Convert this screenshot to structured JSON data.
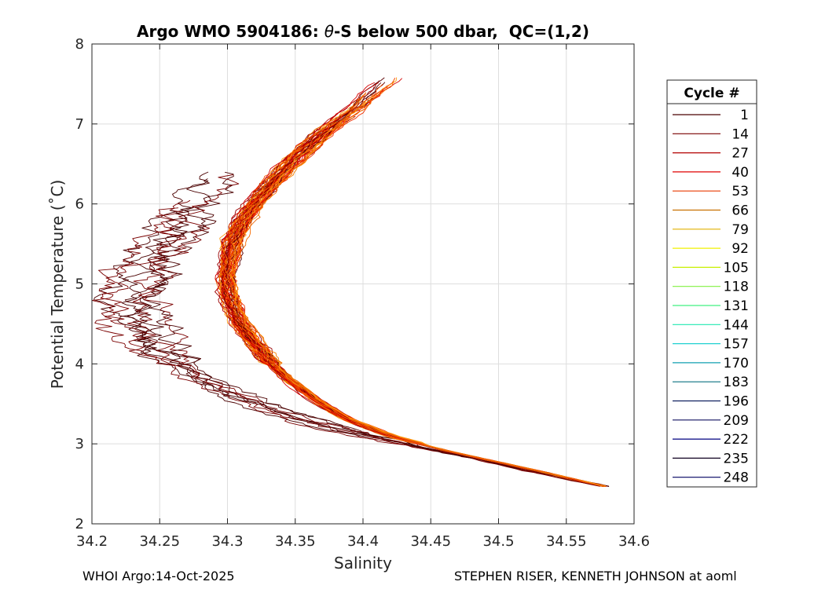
{
  "chart_data": {
    "type": "line",
    "title_prefix": "Argo WMO 5904186: ",
    "title_theta": "θ",
    "title_suffix": "-S below 500 dbar,  QC=(1,2)",
    "xlabel": "Salinity",
    "ylabel": "Potential Temperature (˚C)",
    "xlim": [
      34.2,
      34.6
    ],
    "ylim": [
      2,
      8
    ],
    "xticks": [
      34.2,
      34.25,
      34.3,
      34.35,
      34.4,
      34.45,
      34.5,
      34.55,
      34.6
    ],
    "xtick_labels": [
      "34.2",
      "34.25",
      "34.3",
      "34.35",
      "34.4",
      "34.45",
      "34.5",
      "34.55",
      "34.6"
    ],
    "yticks": [
      2,
      3,
      4,
      5,
      6,
      7,
      8
    ],
    "ytick_labels": [
      "2",
      "3",
      "4",
      "5",
      "6",
      "7",
      "8"
    ],
    "grid": true,
    "legend_position": "right",
    "legend_title": "Cycle #",
    "legend_entries": [
      {
        "label": "1",
        "color": "#4a0000"
      },
      {
        "label": "14",
        "color": "#7a0000"
      },
      {
        "label": "27",
        "color": "#b30000"
      },
      {
        "label": "40",
        "color": "#e00000"
      },
      {
        "label": "53",
        "color": "#e83a00"
      },
      {
        "label": "66",
        "color": "#c87000"
      },
      {
        "label": "79",
        "color": "#e0b000"
      },
      {
        "label": "92",
        "color": "#f0f000"
      },
      {
        "label": "105",
        "color": "#c8f000"
      },
      {
        "label": "118",
        "color": "#80f040"
      },
      {
        "label": "131",
        "color": "#40f080"
      },
      {
        "label": "144",
        "color": "#20e8b0"
      },
      {
        "label": "157",
        "color": "#20d0d0"
      },
      {
        "label": "170",
        "color": "#10a0b0"
      },
      {
        "label": "183",
        "color": "#0a7080"
      },
      {
        "label": "196",
        "color": "#102060"
      },
      {
        "label": "209",
        "color": "#101060"
      },
      {
        "label": "222",
        "color": "#000080"
      },
      {
        "label": "235",
        "color": "#100020"
      },
      {
        "label": "248",
        "color": "#000060"
      }
    ],
    "profile_template": {
      "salinity": [
        34.578,
        34.54,
        34.5,
        34.46,
        34.42,
        34.39,
        34.365,
        34.345,
        34.33,
        34.318,
        34.308,
        34.302,
        34.3,
        34.301,
        34.305,
        34.312,
        34.322,
        34.335,
        34.352,
        34.372,
        34.395,
        34.42
      ],
      "theta": [
        2.47,
        2.62,
        2.77,
        2.92,
        3.1,
        3.3,
        3.55,
        3.8,
        4.05,
        4.3,
        4.55,
        4.8,
        5.05,
        5.3,
        5.55,
        5.8,
        6.05,
        6.3,
        6.6,
        6.9,
        7.2,
        7.58
      ]
    },
    "early_profile_template": {
      "salinity": [
        34.578,
        34.5,
        34.43,
        34.38,
        34.33,
        34.295,
        34.27,
        34.25,
        34.238,
        34.23,
        34.24,
        34.25,
        34.265,
        34.28,
        34.295
      ],
      "theta": [
        2.47,
        2.75,
        3.0,
        3.2,
        3.45,
        3.7,
        3.95,
        4.2,
        4.5,
        4.8,
        5.1,
        5.4,
        5.7,
        6.0,
        6.4
      ]
    },
    "series_colors": [
      "#5a0000",
      "#7a0000",
      "#9a0000",
      "#b80000",
      "#d40000",
      "#e81000",
      "#f03000",
      "#f45000",
      "#f66a00",
      "#f88000",
      "#ff9a10",
      "#e86000"
    ]
  },
  "footer": {
    "left": "WHOI Argo:14-Oct-2025",
    "right": "STEPHEN RISER, KENNETH JOHNSON at aoml"
  }
}
